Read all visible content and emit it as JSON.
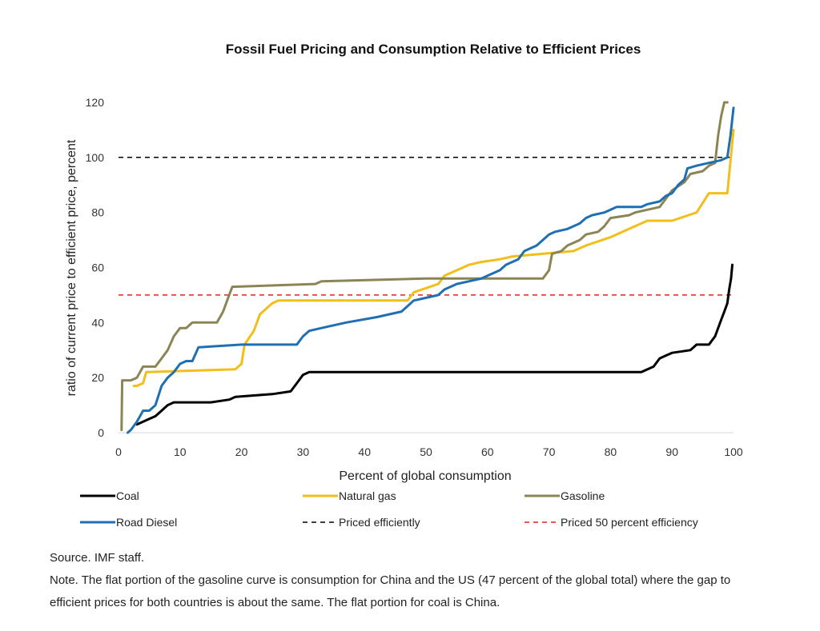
{
  "chart_data": {
    "type": "line",
    "title": "Fossil Fuel Pricing and Consumption Relative to Efficient Prices",
    "xlabel": "Percent of global consumption",
    "ylabel": "ratio of current price to efficient price, percent",
    "xlim": [
      0,
      100
    ],
    "ylim": [
      0,
      120
    ],
    "x_ticks": [
      "0",
      "10",
      "20",
      "30",
      "40",
      "50",
      "60",
      "70",
      "80",
      "90",
      "100"
    ],
    "y_ticks": [
      "0",
      "20",
      "40",
      "60",
      "80",
      "100",
      "120"
    ],
    "grid": false,
    "legend_position": "bottom",
    "series": [
      {
        "name": "Coal",
        "color": "#000000",
        "style": "solid",
        "points": [
          [
            3,
            3
          ],
          [
            5,
            5
          ],
          [
            6,
            6
          ],
          [
            7,
            8
          ],
          [
            8,
            10
          ],
          [
            9,
            11
          ],
          [
            15,
            11
          ],
          [
            18,
            12
          ],
          [
            19,
            13
          ],
          [
            25,
            14
          ],
          [
            28,
            15
          ],
          [
            29,
            18
          ],
          [
            30,
            21
          ],
          [
            31,
            22
          ],
          [
            85,
            22
          ],
          [
            87,
            24
          ],
          [
            88,
            27
          ],
          [
            89,
            28
          ],
          [
            90,
            29
          ],
          [
            93,
            30
          ],
          [
            94,
            32
          ],
          [
            96,
            32
          ],
          [
            97,
            35
          ],
          [
            98,
            41
          ],
          [
            98.5,
            44
          ],
          [
            99,
            47
          ],
          [
            99.3,
            52
          ],
          [
            99.6,
            56
          ],
          [
            99.8,
            61
          ]
        ]
      },
      {
        "name": "Natural gas",
        "color": "#F2BE1A",
        "style": "solid",
        "points": [
          [
            2.5,
            17
          ],
          [
            3,
            17
          ],
          [
            4,
            18
          ],
          [
            4.5,
            22
          ],
          [
            19,
            23
          ],
          [
            20,
            25
          ],
          [
            20.5,
            32
          ],
          [
            22,
            37
          ],
          [
            23,
            43
          ],
          [
            24,
            45
          ],
          [
            25,
            47
          ],
          [
            26,
            48
          ],
          [
            47,
            48
          ],
          [
            48,
            51
          ],
          [
            52,
            54
          ],
          [
            53,
            57
          ],
          [
            57,
            61
          ],
          [
            59,
            62
          ],
          [
            62,
            63
          ],
          [
            64,
            64
          ],
          [
            74,
            66
          ],
          [
            76,
            68
          ],
          [
            80,
            71
          ],
          [
            83,
            74
          ],
          [
            86,
            77
          ],
          [
            90,
            77
          ],
          [
            94,
            80
          ],
          [
            96,
            87
          ],
          [
            99,
            87
          ],
          [
            100,
            110
          ]
        ]
      },
      {
        "name": "Gasoline",
        "color": "#8B8555",
        "style": "solid",
        "points": [
          [
            0.5,
            1
          ],
          [
            0.6,
            19
          ],
          [
            2,
            19
          ],
          [
            3,
            20
          ],
          [
            4,
            24
          ],
          [
            6,
            24
          ],
          [
            7,
            27
          ],
          [
            8,
            30
          ],
          [
            9,
            35
          ],
          [
            10,
            38
          ],
          [
            11,
            38
          ],
          [
            12,
            40
          ],
          [
            16,
            40
          ],
          [
            17,
            44
          ],
          [
            18,
            50
          ],
          [
            18.5,
            53
          ],
          [
            32,
            54
          ],
          [
            33,
            55
          ],
          [
            50,
            56
          ],
          [
            52,
            56
          ],
          [
            69,
            56
          ],
          [
            70,
            59
          ],
          [
            70.5,
            65
          ],
          [
            72,
            66
          ],
          [
            73,
            68
          ],
          [
            75,
            70
          ],
          [
            76,
            72
          ],
          [
            78,
            73
          ],
          [
            79,
            75
          ],
          [
            80,
            78
          ],
          [
            83,
            79
          ],
          [
            84,
            80
          ],
          [
            88,
            82
          ],
          [
            89,
            85
          ],
          [
            90,
            88
          ],
          [
            92,
            91
          ],
          [
            93,
            94
          ],
          [
            95,
            95
          ],
          [
            96,
            97
          ],
          [
            97,
            98
          ],
          [
            97.5,
            108
          ],
          [
            98,
            115
          ],
          [
            98.5,
            120
          ],
          [
            99,
            120
          ]
        ]
      },
      {
        "name": "Road Diesel",
        "color": "#1F6FB2",
        "style": "solid",
        "points": [
          [
            1.5,
            0
          ],
          [
            2,
            1
          ],
          [
            3,
            4
          ],
          [
            4,
            8
          ],
          [
            5,
            8
          ],
          [
            6,
            10
          ],
          [
            7,
            17
          ],
          [
            8,
            20
          ],
          [
            9,
            22
          ],
          [
            10,
            25
          ],
          [
            11,
            26
          ],
          [
            12,
            26
          ],
          [
            13,
            31
          ],
          [
            20,
            32
          ],
          [
            29,
            32
          ],
          [
            30,
            35
          ],
          [
            31,
            37
          ],
          [
            33,
            38
          ],
          [
            37,
            40
          ],
          [
            42,
            42
          ],
          [
            46,
            44
          ],
          [
            47,
            46
          ],
          [
            48,
            48
          ],
          [
            50,
            49
          ],
          [
            52,
            50
          ],
          [
            53,
            52
          ],
          [
            55,
            54
          ],
          [
            57,
            55
          ],
          [
            59,
            56
          ],
          [
            60,
            57
          ],
          [
            62,
            59
          ],
          [
            63,
            61
          ],
          [
            65,
            63
          ],
          [
            66,
            66
          ],
          [
            68,
            68
          ],
          [
            69,
            70
          ],
          [
            70,
            72
          ],
          [
            71,
            73
          ],
          [
            73,
            74
          ],
          [
            75,
            76
          ],
          [
            76,
            78
          ],
          [
            77,
            79
          ],
          [
            79,
            80
          ],
          [
            80,
            81
          ],
          [
            81,
            82
          ],
          [
            85,
            82
          ],
          [
            86,
            83
          ],
          [
            88,
            84
          ],
          [
            89,
            86
          ],
          [
            90,
            87
          ],
          [
            91,
            90
          ],
          [
            92,
            92
          ],
          [
            92.5,
            96
          ],
          [
            94,
            97
          ],
          [
            96,
            98
          ],
          [
            98,
            99
          ],
          [
            99,
            100
          ],
          [
            99.5,
            108
          ],
          [
            100,
            118
          ]
        ]
      },
      {
        "name": "Priced efficiently",
        "color": "#000000",
        "style": "dashed",
        "points": [
          [
            0,
            100
          ],
          [
            100,
            100
          ]
        ]
      },
      {
        "name": "Priced 50 percent efficiency",
        "color": "#E02020",
        "style": "dashed",
        "points": [
          [
            0,
            50
          ],
          [
            100,
            50
          ]
        ]
      }
    ]
  },
  "footnotes": {
    "source": "Source. IMF staff.",
    "note": "Note. The flat portion of the gasoline curve is consumption for China and the US (47 percent of the global total) where the gap to efficient prices for both countries is about the same. The flat portion for coal is China."
  }
}
